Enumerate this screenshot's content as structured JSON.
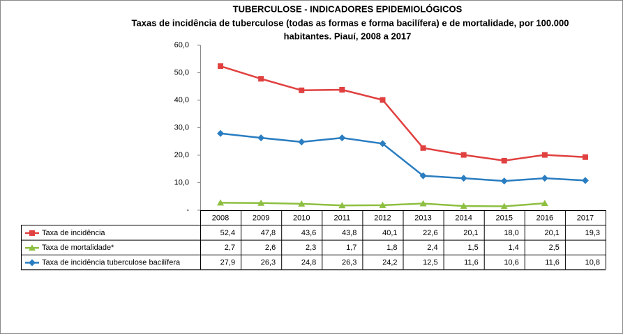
{
  "chart_data": {
    "type": "line",
    "title": "TUBERCULOSE - INDICADORES EPIDEMIOLÓGICOS",
    "subtitle": [
      "Taxas de incidência de tuberculose (todas as formas e forma bacilífera) e de mortalidade,  por 100.000",
      "habitantes. Piauí, 2008 a 2017"
    ],
    "categories": [
      "2008",
      "2009",
      "2010",
      "2011",
      "2012",
      "2013",
      "2014",
      "2015",
      "2016",
      "2017"
    ],
    "series": [
      {
        "name": "Taxa de incidência",
        "color": "#e0403f",
        "marker": "square",
        "values": [
          52.4,
          47.8,
          43.6,
          43.8,
          40.1,
          22.6,
          20.1,
          18.0,
          20.1,
          19.3
        ],
        "value_labels": [
          "52,4",
          "47,8",
          "43,6",
          "43,8",
          "40,1",
          "22,6",
          "20,1",
          "18,0",
          "20,1",
          "19,3"
        ]
      },
      {
        "name": "Taxa de mortalidade*",
        "color": "#8dbf41",
        "marker": "triangle",
        "values": [
          2.7,
          2.6,
          2.3,
          1.7,
          1.8,
          2.4,
          1.5,
          1.4,
          2.5,
          null
        ],
        "value_labels": [
          "2,7",
          "2,6",
          "2,3",
          "1,7",
          "1,8",
          "2,4",
          "1,5",
          "1,4",
          "2,5",
          null
        ]
      },
      {
        "name": "Taxa de incidência tuberculose bacilífera",
        "color": "#2a7dc1",
        "marker": "diamond",
        "values": [
          27.9,
          26.3,
          24.8,
          26.3,
          24.2,
          12.5,
          11.6,
          10.6,
          11.6,
          10.8
        ],
        "value_labels": [
          "27,9",
          "26,3",
          "24,8",
          "26,3",
          "24,2",
          "12,5",
          "11,6",
          "10,6",
          "11,6",
          "10,8"
        ]
      }
    ],
    "ylim": [
      0,
      60
    ],
    "yticks": [
      {
        "value": 0,
        "label": "-"
      },
      {
        "value": 10,
        "label": "10,0"
      },
      {
        "value": 20,
        "label": "20,0"
      },
      {
        "value": 30,
        "label": "30,0"
      },
      {
        "value": 40,
        "label": "40,0"
      },
      {
        "value": 50,
        "label": "50,0"
      },
      {
        "value": 60,
        "label": "60,0"
      }
    ],
    "grid": false,
    "data_table": true
  }
}
